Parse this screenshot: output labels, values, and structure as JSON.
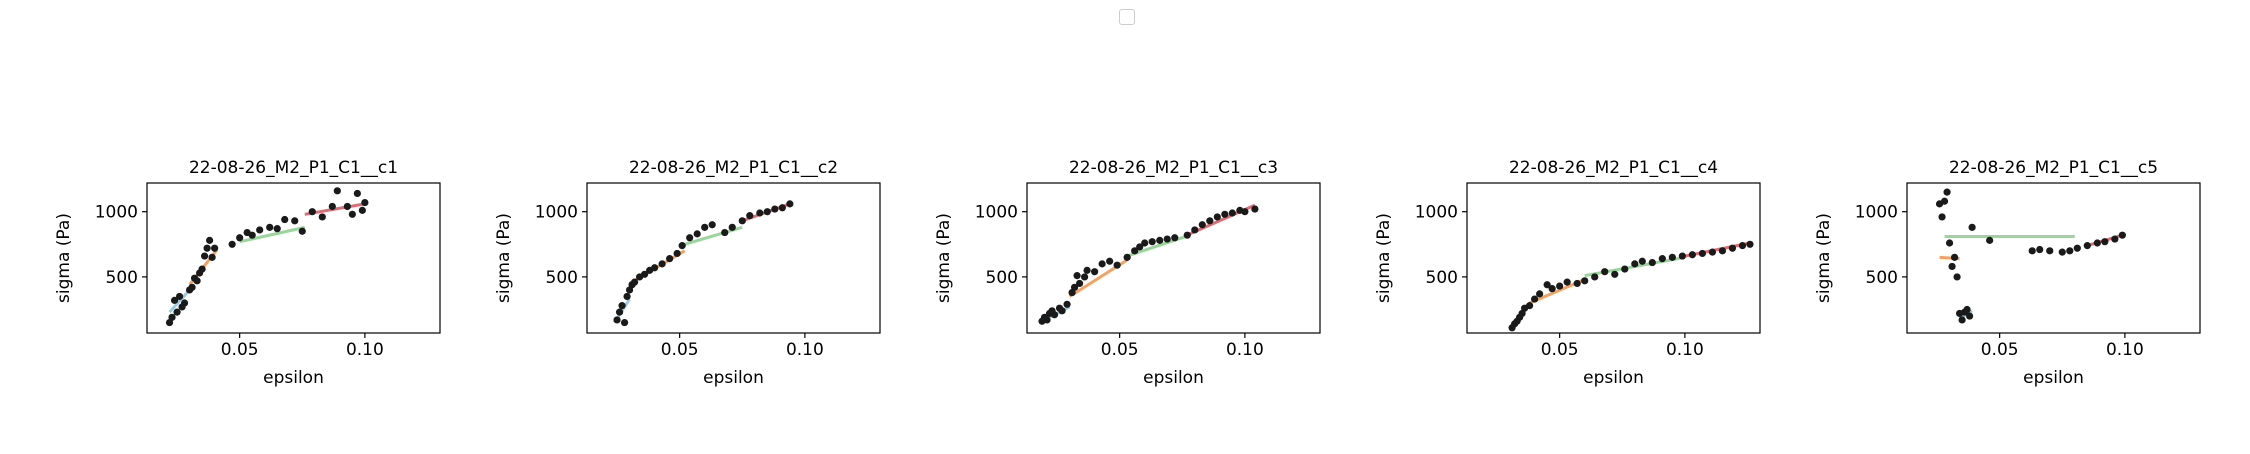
{
  "figure": {
    "legend": {
      "visible": true,
      "entries": []
    }
  },
  "chart_data": [
    {
      "type": "scatter",
      "title": "22-08-26_M2_P1_C1__c1",
      "xlabel": "epsilon",
      "ylabel": "sigma (Pa)",
      "xlim": [
        0.013,
        0.13
      ],
      "ylim": [
        70,
        1220
      ],
      "xticks": [
        0.05,
        0.1
      ],
      "yticks": [
        500,
        1000
      ],
      "xtick_labels": [
        "0.05",
        "0.10"
      ],
      "ytick_labels": [
        "500",
        "1000"
      ],
      "grid": false,
      "points": [
        [
          0.022,
          150
        ],
        [
          0.023,
          190
        ],
        [
          0.024,
          320
        ],
        [
          0.025,
          230
        ],
        [
          0.026,
          350
        ],
        [
          0.027,
          270
        ],
        [
          0.028,
          300
        ],
        [
          0.03,
          400
        ],
        [
          0.031,
          420
        ],
        [
          0.032,
          490
        ],
        [
          0.033,
          470
        ],
        [
          0.034,
          530
        ],
        [
          0.035,
          560
        ],
        [
          0.036,
          660
        ],
        [
          0.037,
          720
        ],
        [
          0.038,
          780
        ],
        [
          0.039,
          650
        ],
        [
          0.04,
          720
        ],
        [
          0.047,
          750
        ],
        [
          0.05,
          800
        ],
        [
          0.053,
          840
        ],
        [
          0.055,
          820
        ],
        [
          0.058,
          860
        ],
        [
          0.062,
          880
        ],
        [
          0.065,
          870
        ],
        [
          0.068,
          940
        ],
        [
          0.072,
          930
        ],
        [
          0.075,
          850
        ],
        [
          0.079,
          1000
        ],
        [
          0.083,
          960
        ],
        [
          0.087,
          1040
        ],
        [
          0.089,
          1160
        ],
        [
          0.093,
          1040
        ],
        [
          0.095,
          980
        ],
        [
          0.097,
          1140
        ],
        [
          0.099,
          1010
        ],
        [
          0.1,
          1070
        ]
      ],
      "fits": [
        {
          "color": "#9ecae1",
          "x": [
            0.022,
            0.03
          ],
          "y": [
            230,
            400
          ]
        },
        {
          "color": "#f4a261",
          "x": [
            0.03,
            0.041
          ],
          "y": [
            440,
            710
          ]
        },
        {
          "color": "#98d69a",
          "x": [
            0.05,
            0.076
          ],
          "y": [
            770,
            880
          ]
        },
        {
          "color": "#e06c75",
          "x": [
            0.076,
            0.1
          ],
          "y": [
            980,
            1060
          ]
        }
      ]
    },
    {
      "type": "scatter",
      "title": "22-08-26_M2_P1_C1__c2",
      "xlabel": "epsilon",
      "ylabel": "sigma (Pa)",
      "xlim": [
        0.013,
        0.13
      ],
      "ylim": [
        70,
        1220
      ],
      "xticks": [
        0.05,
        0.1
      ],
      "yticks": [
        500,
        1000
      ],
      "xtick_labels": [
        "0.05",
        "0.10"
      ],
      "ytick_labels": [
        "500",
        "1000"
      ],
      "grid": false,
      "points": [
        [
          0.025,
          170
        ],
        [
          0.026,
          230
        ],
        [
          0.027,
          280
        ],
        [
          0.028,
          150
        ],
        [
          0.029,
          350
        ],
        [
          0.03,
          400
        ],
        [
          0.031,
          440
        ],
        [
          0.032,
          460
        ],
        [
          0.034,
          500
        ],
        [
          0.036,
          520
        ],
        [
          0.038,
          550
        ],
        [
          0.04,
          570
        ],
        [
          0.043,
          600
        ],
        [
          0.046,
          640
        ],
        [
          0.049,
          680
        ],
        [
          0.051,
          740
        ],
        [
          0.054,
          800
        ],
        [
          0.057,
          830
        ],
        [
          0.06,
          880
        ],
        [
          0.063,
          900
        ],
        [
          0.068,
          840
        ],
        [
          0.071,
          880
        ],
        [
          0.075,
          930
        ],
        [
          0.078,
          970
        ],
        [
          0.082,
          990
        ],
        [
          0.085,
          1000
        ],
        [
          0.088,
          1020
        ],
        [
          0.091,
          1030
        ],
        [
          0.094,
          1060
        ]
      ],
      "fits": [
        {
          "color": "#9ecae1",
          "x": [
            0.024,
            0.03
          ],
          "y": [
            150,
            330
          ]
        },
        {
          "color": "#f4a261",
          "x": [
            0.03,
            0.052
          ],
          "y": [
            450,
            700
          ]
        },
        {
          "color": "#98d69a",
          "x": [
            0.052,
            0.075
          ],
          "y": [
            750,
            880
          ]
        },
        {
          "color": "#e06c75",
          "x": [
            0.075,
            0.094
          ],
          "y": [
            930,
            1060
          ]
        }
      ]
    },
    {
      "type": "scatter",
      "title": "22-08-26_M2_P1_C1__c3",
      "xlabel": "epsilon",
      "ylabel": "sigma (Pa)",
      "xlim": [
        0.013,
        0.13
      ],
      "ylim": [
        70,
        1220
      ],
      "xticks": [
        0.05,
        0.1
      ],
      "yticks": [
        500,
        1000
      ],
      "xtick_labels": [
        "0.05",
        "0.10"
      ],
      "ytick_labels": [
        "500",
        "1000"
      ],
      "grid": false,
      "points": [
        [
          0.019,
          160
        ],
        [
          0.02,
          190
        ],
        [
          0.021,
          170
        ],
        [
          0.022,
          220
        ],
        [
          0.023,
          240
        ],
        [
          0.024,
          210
        ],
        [
          0.026,
          260
        ],
        [
          0.027,
          240
        ],
        [
          0.029,
          290
        ],
        [
          0.031,
          380
        ],
        [
          0.032,
          420
        ],
        [
          0.033,
          510
        ],
        [
          0.034,
          450
        ],
        [
          0.036,
          500
        ],
        [
          0.037,
          550
        ],
        [
          0.04,
          540
        ],
        [
          0.043,
          600
        ],
        [
          0.046,
          620
        ],
        [
          0.049,
          590
        ],
        [
          0.053,
          650
        ],
        [
          0.056,
          700
        ],
        [
          0.058,
          730
        ],
        [
          0.06,
          760
        ],
        [
          0.063,
          770
        ],
        [
          0.066,
          780
        ],
        [
          0.069,
          790
        ],
        [
          0.072,
          800
        ],
        [
          0.077,
          820
        ],
        [
          0.08,
          860
        ],
        [
          0.083,
          900
        ],
        [
          0.086,
          930
        ],
        [
          0.089,
          960
        ],
        [
          0.092,
          980
        ],
        [
          0.095,
          990
        ],
        [
          0.098,
          1010
        ],
        [
          0.1,
          1000
        ],
        [
          0.104,
          1020
        ]
      ],
      "fits": [
        {
          "color": "#9ecae1",
          "x": [
            0.019,
            0.03
          ],
          "y": [
            160,
            270
          ]
        },
        {
          "color": "#f4a261",
          "x": [
            0.03,
            0.053
          ],
          "y": [
            350,
            630
          ]
        },
        {
          "color": "#98d69a",
          "x": [
            0.053,
            0.078
          ],
          "y": [
            660,
            820
          ]
        },
        {
          "color": "#e06c75",
          "x": [
            0.078,
            0.104
          ],
          "y": [
            830,
            1050
          ]
        }
      ]
    },
    {
      "type": "scatter",
      "title": "22-08-26_M2_P1_C1__c4",
      "xlabel": "epsilon",
      "ylabel": "sigma (Pa)",
      "xlim": [
        0.013,
        0.13
      ],
      "ylim": [
        70,
        1220
      ],
      "xticks": [
        0.05,
        0.1
      ],
      "yticks": [
        500,
        1000
      ],
      "xtick_labels": [
        "0.05",
        "0.10"
      ],
      "ytick_labels": [
        "500",
        "1000"
      ],
      "grid": false,
      "points": [
        [
          0.031,
          110
        ],
        [
          0.032,
          140
        ],
        [
          0.033,
          160
        ],
        [
          0.034,
          190
        ],
        [
          0.035,
          220
        ],
        [
          0.036,
          260
        ],
        [
          0.038,
          280
        ],
        [
          0.04,
          330
        ],
        [
          0.042,
          370
        ],
        [
          0.045,
          440
        ],
        [
          0.047,
          410
        ],
        [
          0.05,
          430
        ],
        [
          0.053,
          460
        ],
        [
          0.057,
          450
        ],
        [
          0.06,
          470
        ],
        [
          0.064,
          500
        ],
        [
          0.068,
          540
        ],
        [
          0.072,
          520
        ],
        [
          0.076,
          560
        ],
        [
          0.08,
          600
        ],
        [
          0.083,
          620
        ],
        [
          0.087,
          610
        ],
        [
          0.091,
          640
        ],
        [
          0.095,
          650
        ],
        [
          0.099,
          660
        ],
        [
          0.103,
          670
        ],
        [
          0.107,
          680
        ],
        [
          0.111,
          690
        ],
        [
          0.115,
          700
        ],
        [
          0.119,
          720
        ],
        [
          0.123,
          740
        ],
        [
          0.126,
          750
        ]
      ],
      "fits": [
        {
          "color": "#9ecae1",
          "x": [
            0.031,
            0.038
          ],
          "y": [
            110,
            290
          ]
        },
        {
          "color": "#f4a261",
          "x": [
            0.038,
            0.06
          ],
          "y": [
            300,
            480
          ]
        },
        {
          "color": "#98d69a",
          "x": [
            0.06,
            0.1
          ],
          "y": [
            510,
            650
          ]
        },
        {
          "color": "#e06c75",
          "x": [
            0.1,
            0.126
          ],
          "y": [
            660,
            760
          ]
        }
      ]
    },
    {
      "type": "scatter",
      "title": "22-08-26_M2_P1_C1__c5",
      "xlabel": "epsilon",
      "ylabel": "sigma (Pa)",
      "xlim": [
        0.013,
        0.13
      ],
      "ylim": [
        70,
        1220
      ],
      "xticks": [
        0.05,
        0.1
      ],
      "yticks": [
        500,
        1000
      ],
      "xtick_labels": [
        "0.05",
        "0.10"
      ],
      "ytick_labels": [
        "500",
        "1000"
      ],
      "grid": false,
      "points": [
        [
          0.026,
          1060
        ],
        [
          0.027,
          960
        ],
        [
          0.028,
          1080
        ],
        [
          0.029,
          1150
        ],
        [
          0.03,
          760
        ],
        [
          0.031,
          580
        ],
        [
          0.032,
          650
        ],
        [
          0.033,
          500
        ],
        [
          0.034,
          220
        ],
        [
          0.035,
          170
        ],
        [
          0.036,
          230
        ],
        [
          0.037,
          250
        ],
        [
          0.038,
          200
        ],
        [
          0.039,
          880
        ],
        [
          0.046,
          780
        ],
        [
          0.063,
          700
        ],
        [
          0.066,
          710
        ],
        [
          0.07,
          700
        ],
        [
          0.075,
          690
        ],
        [
          0.078,
          700
        ],
        [
          0.081,
          720
        ],
        [
          0.085,
          740
        ],
        [
          0.089,
          760
        ],
        [
          0.092,
          770
        ],
        [
          0.096,
          790
        ],
        [
          0.099,
          820
        ]
      ],
      "fits": [
        {
          "color": "#9ecae1",
          "x": [
            0.034,
            0.039
          ],
          "y": [
            180,
            240
          ]
        },
        {
          "color": "#f4a261",
          "x": [
            0.026,
            0.034
          ],
          "y": [
            650,
            640
          ]
        },
        {
          "color": "#98d69a",
          "x": [
            0.028,
            0.08
          ],
          "y": [
            810,
            810
          ]
        },
        {
          "color": "#e06c75",
          "x": [
            0.085,
            0.099
          ],
          "y": [
            740,
            820
          ]
        }
      ]
    }
  ]
}
